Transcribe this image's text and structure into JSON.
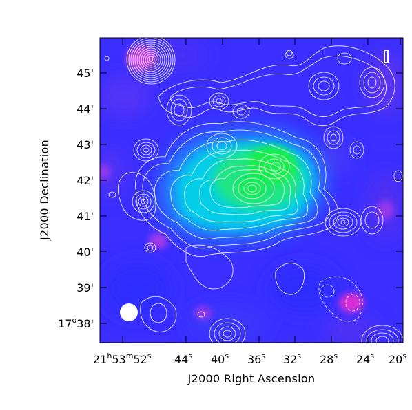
{
  "figure": {
    "xlabel": "J2000 Right Ascension",
    "ylabel": "J2000 Declination",
    "ra_ticks": [
      {
        "h": "21",
        "m": "53",
        "s": "52"
      },
      {
        "s": "44"
      },
      {
        "s": "40"
      },
      {
        "s": "36"
      },
      {
        "s": "32"
      },
      {
        "s": "28"
      },
      {
        "s": "24"
      },
      {
        "s": "20"
      }
    ],
    "dec_ticks": [
      {
        "deg": "17",
        "min": "38'"
      },
      {
        "min": "39'"
      },
      {
        "min": "40'"
      },
      {
        "min": "41'"
      },
      {
        "min": "42'"
      },
      {
        "min": "43'"
      },
      {
        "min": "44'"
      },
      {
        "min": "45'"
      }
    ],
    "colors": {
      "background_map": "#3a2fff",
      "emission_core": "#16f044",
      "emission_halo": "#00d7e6",
      "magenta_spots": "#f02bd0",
      "contours": "#ffffff",
      "beam": "#ffffff"
    }
  }
}
